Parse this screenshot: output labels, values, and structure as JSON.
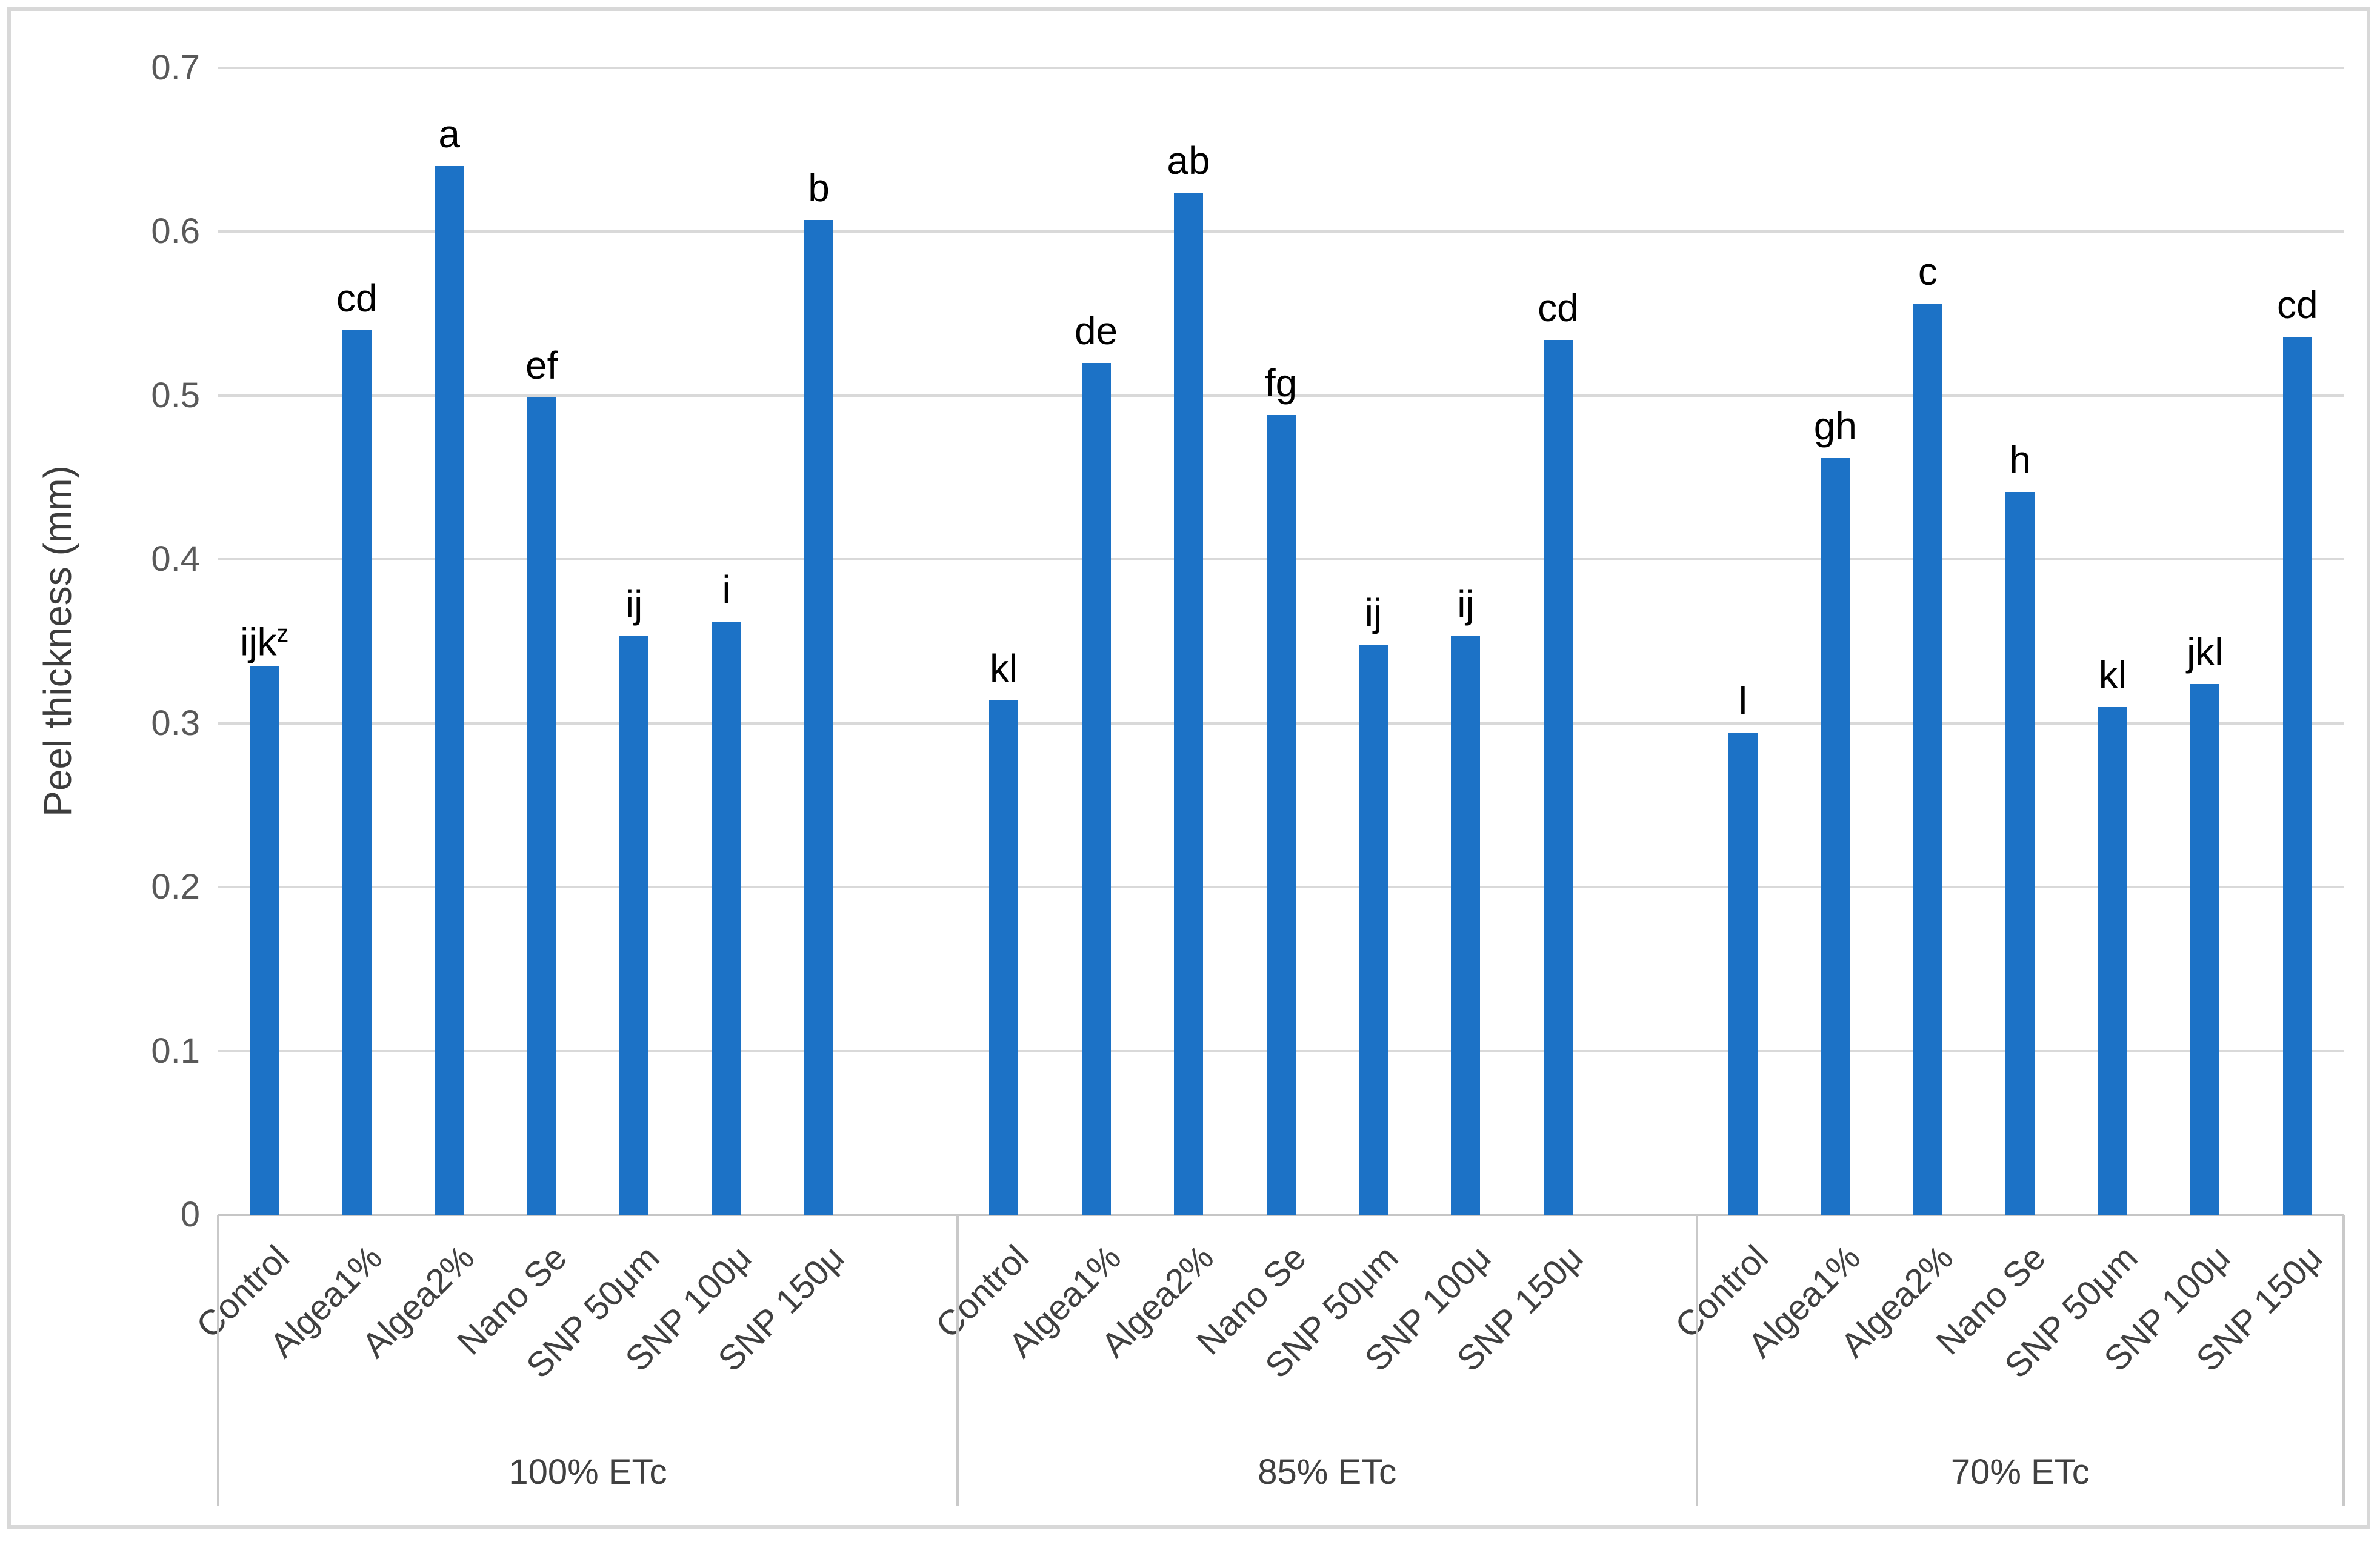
{
  "figure": {
    "background": "#ffffff",
    "border_color": "#d8d8d8"
  },
  "chart_data": {
    "type": "bar",
    "title": "",
    "ylabel": "Peel thickness (mm)",
    "xlabel": "",
    "ylim": [
      0,
      0.7
    ],
    "yticks": [
      0,
      0.1,
      0.2,
      0.3,
      0.4,
      0.5,
      0.6,
      0.7
    ],
    "ytick_labels": [
      "0",
      "0.1",
      "0.2",
      "0.3",
      "0.4",
      "0.5",
      "0.6",
      "0.7"
    ],
    "grid": true,
    "legend": false,
    "bar_color": "#1c72c6",
    "gridline_color": "#d9d9d9",
    "axis_line_color": "#c6c6c6",
    "tick_label_color": "#595959",
    "category_label_color": "#404040",
    "letter_color": "#000000",
    "categories": [
      "Control",
      "Algea1%",
      "Algea2%",
      "Nano Se",
      "SNP 50μm",
      "SNP 100μ",
      "SNP 150μ"
    ],
    "groups": [
      {
        "label": "100% ETc",
        "values": [
          0.335,
          0.54,
          0.64,
          0.499,
          0.353,
          0.362,
          0.607
        ],
        "letters": [
          {
            "text": "ijk",
            "sup": "z"
          },
          {
            "text": "cd",
            "sup": ""
          },
          {
            "text": "a",
            "sup": ""
          },
          {
            "text": "ef",
            "sup": ""
          },
          {
            "text": "ij",
            "sup": ""
          },
          {
            "text": "i",
            "sup": ""
          },
          {
            "text": "b",
            "sup": ""
          }
        ]
      },
      {
        "label": "85% ETc",
        "values": [
          0.314,
          0.52,
          0.624,
          0.488,
          0.348,
          0.353,
          0.534
        ],
        "letters": [
          {
            "text": "kl",
            "sup": ""
          },
          {
            "text": "de",
            "sup": ""
          },
          {
            "text": "ab",
            "sup": ""
          },
          {
            "text": "fg",
            "sup": ""
          },
          {
            "text": "ij",
            "sup": ""
          },
          {
            "text": "ij",
            "sup": ""
          },
          {
            "text": "cd",
            "sup": ""
          }
        ]
      },
      {
        "label": "70% ETc",
        "values": [
          0.294,
          0.462,
          0.556,
          0.441,
          0.31,
          0.324,
          0.536
        ],
        "letters": [
          {
            "text": "l",
            "sup": ""
          },
          {
            "text": "gh",
            "sup": ""
          },
          {
            "text": "c",
            "sup": ""
          },
          {
            "text": "h",
            "sup": ""
          },
          {
            "text": "kl",
            "sup": ""
          },
          {
            "text": "jkl",
            "sup": ""
          },
          {
            "text": "cd",
            "sup": ""
          }
        ]
      }
    ]
  }
}
